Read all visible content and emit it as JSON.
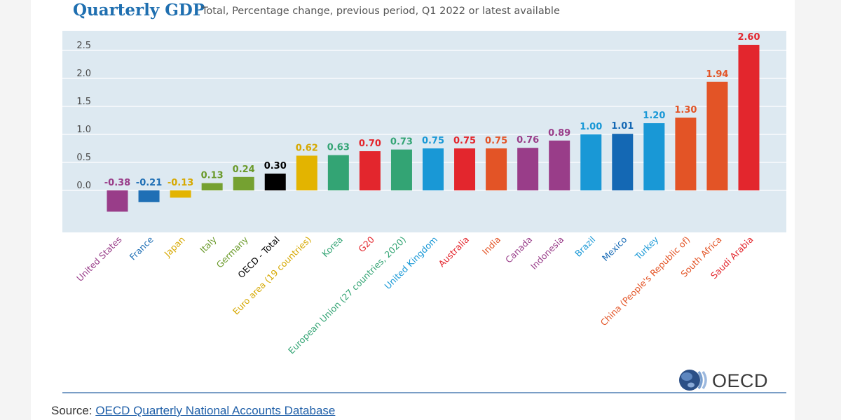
{
  "chart_data": {
    "type": "bar",
    "title": "Quarterly GDP",
    "subtitle": "Total, Percentage change, previous period, Q1 2022 or latest available",
    "xlabel": "",
    "ylabel": "",
    "yticks": [
      "0.0",
      "0.5",
      "1.0",
      "1.5",
      "2.0",
      "2.5"
    ],
    "ylim": [
      -0.75,
      2.85
    ],
    "grid": true,
    "categories": [
      "United States",
      "France",
      "Japan",
      "Italy",
      "Germany",
      "OECD - Total",
      "Euro area (19 countries)",
      "Korea",
      "G20",
      "European Union (27 countries, 2020)",
      "United Kingdom",
      "Australia",
      "India",
      "Canada",
      "Indonesia",
      "Brazil",
      "Mexico",
      "Turkey",
      "China (People's Republic of)",
      "South Africa",
      "Saudi Arabia"
    ],
    "values": [
      -0.38,
      -0.21,
      -0.13,
      0.13,
      0.24,
      0.3,
      0.62,
      0.63,
      0.7,
      0.73,
      0.75,
      0.75,
      0.75,
      0.76,
      0.89,
      1.0,
      1.01,
      1.2,
      1.3,
      1.94,
      2.6
    ],
    "value_labels": [
      "-0.38",
      "-0.21",
      "-0.13",
      "0.13",
      "0.24",
      "0.30",
      "0.62",
      "0.63",
      "0.70",
      "0.73",
      "0.75",
      "0.75",
      "0.75",
      "0.76",
      "0.89",
      "1.00",
      "1.01",
      "1.20",
      "1.30",
      "1.94",
      "2.60"
    ],
    "colors": [
      "#993d89",
      "#1f6fb5",
      "#e3b400",
      "#75a131",
      "#75a131",
      "#000000",
      "#e3b400",
      "#33a474",
      "#e3262d",
      "#33a474",
      "#1998d6",
      "#e3262d",
      "#e35426",
      "#993d89",
      "#993d89",
      "#1998d6",
      "#1468b4",
      "#1998d6",
      "#e35426",
      "#e35426",
      "#e3262d"
    ],
    "label_colors": [
      "#993d89",
      "#1f6fb5",
      "#d6a800",
      "#6a9a2a",
      "#6a9a2a",
      "#000000",
      "#d6a800",
      "#33a474",
      "#e3262d",
      "#33a474",
      "#1998d6",
      "#e3262d",
      "#e35426",
      "#993d89",
      "#993d89",
      "#1998d6",
      "#1468b4",
      "#1998d6",
      "#e35426",
      "#e35426",
      "#e3262d"
    ]
  },
  "logo": {
    "text": "OECD"
  },
  "source": {
    "prefix": "Source: ",
    "link_text": "OECD Quarterly National Accounts Database"
  }
}
